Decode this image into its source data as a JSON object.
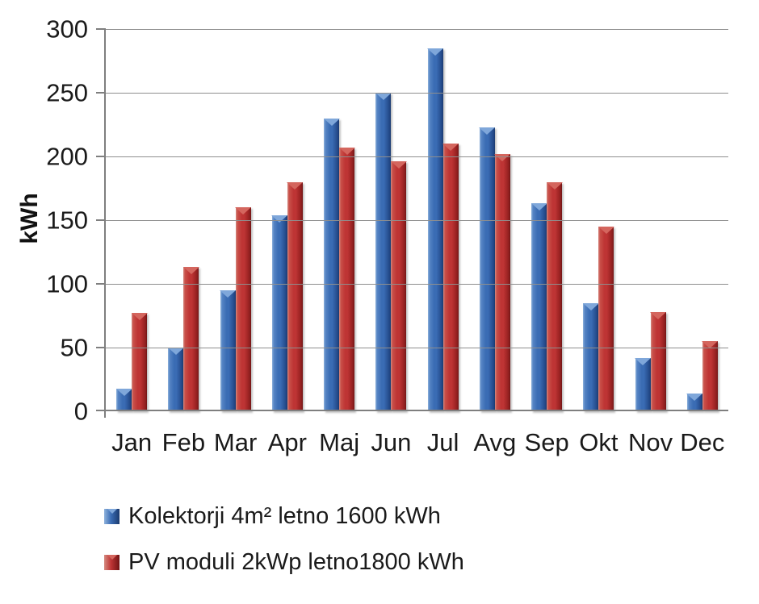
{
  "chart_data": {
    "type": "bar",
    "title": "",
    "xlabel": "",
    "ylabel": "kWh",
    "ylim": [
      0,
      300
    ],
    "yticks": [
      0,
      50,
      100,
      150,
      200,
      250,
      300
    ],
    "grid": true,
    "legend_position": "bottom-left",
    "categories": [
      "Jan",
      "Feb",
      "Mar",
      "Apr",
      "Maj",
      "Jun",
      "Jul",
      "Avg",
      "Sep",
      "Okt",
      "Nov",
      "Dec"
    ],
    "series": [
      {
        "name": "Kolektorji 4m² letno 1600 kWh",
        "key": "kolektorji",
        "color": "#3A6CB4",
        "values": [
          18,
          50,
          95,
          154,
          230,
          250,
          285,
          223,
          163,
          85,
          42,
          14
        ]
      },
      {
        "name": "PV moduli 2kWp letno1800 kWh",
        "key": "pv-moduli",
        "color": "#BE3434",
        "values": [
          77,
          113,
          160,
          180,
          207,
          196,
          210,
          202,
          180,
          145,
          78,
          55
        ]
      }
    ],
    "axis_color": "#7F7F7F",
    "gridline_color": "#8E8E8E",
    "text_color": "#1A1A1A"
  }
}
